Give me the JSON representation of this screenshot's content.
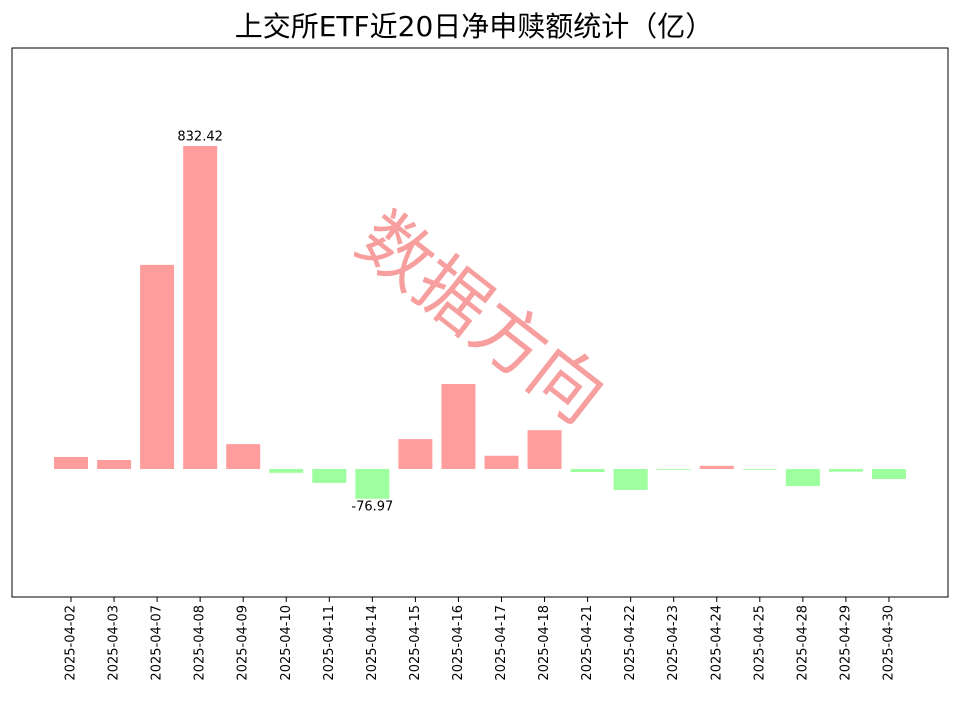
{
  "chart_data": {
    "type": "bar",
    "title": "上交所ETF近20日净申赎额统计（亿）",
    "categories": [
      "2025-04-02",
      "2025-04-03",
      "2025-04-07",
      "2025-04-08",
      "2025-04-09",
      "2025-04-10",
      "2025-04-11",
      "2025-04-14",
      "2025-04-15",
      "2025-04-16",
      "2025-04-17",
      "2025-04-18",
      "2025-04-21",
      "2025-04-22",
      "2025-04-23",
      "2025-04-24",
      "2025-04-25",
      "2025-04-28",
      "2025-04-29",
      "2025-04-30"
    ],
    "values": [
      31,
      23,
      526,
      832.42,
      64,
      -10,
      -36,
      -76.97,
      77,
      219,
      34,
      100,
      -8,
      -54,
      -2,
      8,
      -2,
      -44,
      -7,
      -26
    ],
    "value_labels": [
      null,
      null,
      null,
      "832.42",
      null,
      null,
      null,
      "-76.97",
      null,
      null,
      null,
      null,
      null,
      null,
      null,
      null,
      null,
      null,
      null,
      null
    ],
    "positive_color": "#ff9d9d",
    "negative_color": "#9dff9d",
    "ylim": [
      -330,
      1085
    ],
    "watermark": "数据方向"
  }
}
